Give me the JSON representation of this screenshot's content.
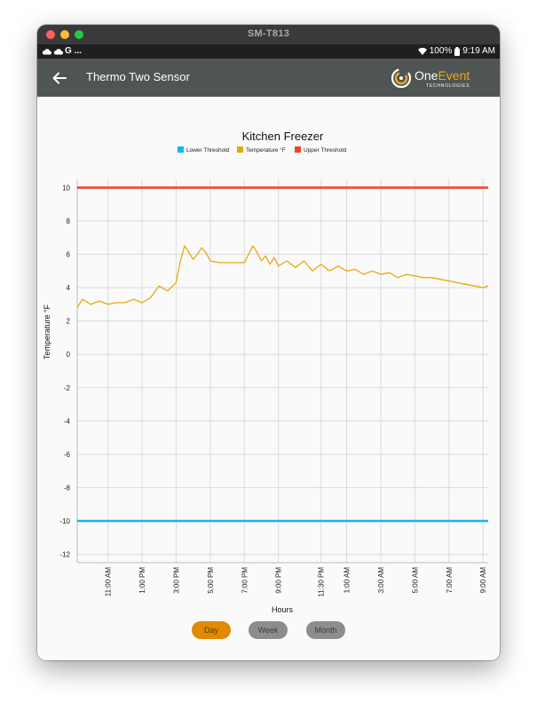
{
  "window": {
    "title": "SM-T813"
  },
  "status_bar": {
    "left_glyphs": [
      "cloud-icon",
      "cloud-icon",
      "google-icon"
    ],
    "left_text": "G ...",
    "battery": "100%",
    "time": "9:19 AM"
  },
  "app_bar": {
    "title": "Thermo Two Sensor",
    "logo_one": "One",
    "logo_event": "Event",
    "logo_sub": "TECHNOLOGIES"
  },
  "range_buttons": {
    "day": "Day",
    "week": "Week",
    "month": "Month"
  },
  "colors": {
    "lower": "#1ab2ee",
    "temperature": "#e8a90f",
    "upper": "#f0452d",
    "app_bar": "#4f5552",
    "day_button": "#e08a00",
    "inactive_button": "#8b8e8c"
  },
  "chart_data": {
    "type": "line",
    "title": "Kitchen Freezer",
    "xlabel": "Hours",
    "ylabel": "Temperature °F",
    "ylim": [
      -12.5,
      10.5
    ],
    "yticks": [
      10,
      8,
      6,
      4,
      2,
      0,
      -2,
      -4,
      -6,
      -8,
      -10,
      -12
    ],
    "x_ticks": [
      "11:00 AM",
      "1:00 PM",
      "3:00 PM",
      "5:00 PM",
      "7:00 PM",
      "9:00 PM",
      "11:30 PM",
      "1:00 AM",
      "3:00 AM",
      "5:00 AM",
      "7:00 AM",
      "9:00 AM"
    ],
    "x_tick_hours": [
      11,
      13,
      15,
      17,
      19,
      21,
      23.5,
      25,
      27,
      29,
      31,
      33
    ],
    "xlim_hours": [
      9.2,
      33.3
    ],
    "grid": true,
    "legend_position": "top",
    "legend": [
      "Lower Threshold",
      "Temperature °F",
      "Upper Threshold"
    ],
    "series": [
      {
        "name": "Lower Threshold",
        "x_hours": [
          9.2,
          33.3
        ],
        "values": [
          -10,
          -10
        ]
      },
      {
        "name": "Temperature °F",
        "x_hours": [
          9.2,
          9.5,
          10.0,
          10.5,
          11.0,
          11.5,
          12.0,
          12.5,
          13.0,
          13.5,
          14.0,
          14.5,
          15.0,
          15.25,
          15.5,
          15.75,
          16.0,
          16.25,
          16.5,
          16.75,
          17.0,
          17.5,
          18.0,
          18.5,
          19.0,
          19.25,
          19.5,
          19.75,
          20.0,
          20.25,
          20.5,
          20.75,
          21.0,
          21.5,
          22.0,
          22.5,
          23.0,
          23.5,
          24.0,
          24.5,
          25.0,
          25.5,
          26.0,
          26.5,
          27.0,
          27.5,
          28.0,
          28.5,
          29.0,
          29.5,
          30.0,
          30.5,
          31.0,
          31.5,
          32.0,
          32.5,
          33.0,
          33.3
        ],
        "values": [
          2.8,
          3.3,
          3.0,
          3.2,
          3.0,
          3.1,
          3.1,
          3.3,
          3.1,
          3.4,
          4.1,
          3.8,
          4.3,
          5.6,
          6.5,
          6.1,
          5.7,
          6.0,
          6.4,
          6.1,
          5.6,
          5.5,
          5.5,
          5.5,
          5.5,
          6.0,
          6.5,
          6.1,
          5.6,
          5.9,
          5.4,
          5.8,
          5.3,
          5.6,
          5.2,
          5.6,
          5.0,
          5.4,
          5.0,
          5.3,
          5.0,
          5.1,
          4.8,
          5.0,
          4.8,
          4.9,
          4.6,
          4.8,
          4.7,
          4.6,
          4.6,
          4.5,
          4.4,
          4.3,
          4.2,
          4.1,
          4.0,
          4.1
        ]
      },
      {
        "name": "Upper Threshold",
        "x_hours": [
          9.2,
          33.3
        ],
        "values": [
          10,
          10
        ]
      }
    ]
  }
}
